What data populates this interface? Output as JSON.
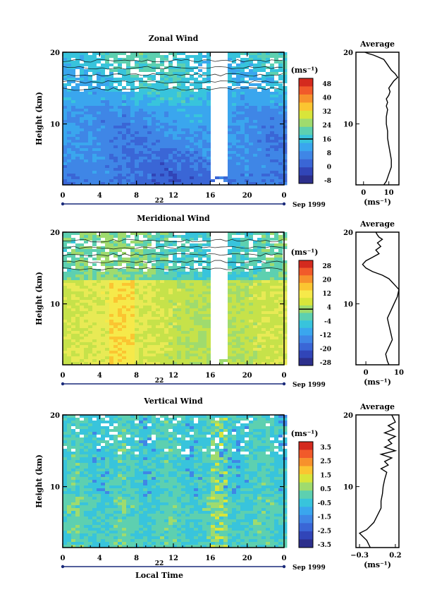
{
  "chart_data": [
    {
      "type": "heatmap",
      "title": "Zonal Wind",
      "ylabel": "Height (km)",
      "x_ticks": [
        "0",
        "4",
        "8",
        "12",
        "16",
        "20",
        "0"
      ],
      "y_ticks": [
        "10",
        "20"
      ],
      "xlim": [
        0,
        24
      ],
      "ylim": [
        1.5,
        20
      ],
      "date_day": "22",
      "date_month": "Sep 1999",
      "colorbar_units": "(ms⁻¹)",
      "colorbar_ticks": [
        "48",
        "40",
        "32",
        "24",
        "16",
        "8",
        "0",
        "-8"
      ],
      "colorbar_colors": [
        "#d42a1e",
        "#f15a2a",
        "#f7912c",
        "#fbc531",
        "#d8e53a",
        "#9fdb6e",
        "#5dd0b0",
        "#38c4dc",
        "#3aa6ee",
        "#3f86e6",
        "#3a66d6",
        "#3145b8",
        "#2c2f8c"
      ],
      "zero_line_index": 6,
      "average": {
        "title": "Average",
        "xlabel": "(ms⁻¹)",
        "x_ticks": [
          "0",
          "10"
        ],
        "y_ticks": [
          "10",
          "20"
        ],
        "xlim": [
          -3,
          14
        ],
        "profile_x": [
          8,
          9,
          10,
          11,
          11,
          10.5,
          10,
          9.5,
          9.5,
          9,
          9,
          9.5,
          9,
          9.5,
          9,
          10,
          10.5,
          10,
          11,
          12,
          13.5,
          12.5,
          11,
          10,
          9,
          8,
          6,
          4,
          2,
          0.5
        ],
        "profile_y": [
          1.5,
          2,
          3,
          4,
          5,
          6,
          7,
          8,
          9,
          10,
          11,
          12,
          12.5,
          13,
          13.5,
          14,
          14.5,
          15,
          15.5,
          16,
          16.5,
          17,
          17.5,
          18,
          18.5,
          19,
          19.3,
          19.6,
          19.8,
          20
        ]
      }
    },
    {
      "type": "heatmap",
      "title": "Meridional Wind",
      "ylabel": "Height (km)",
      "x_ticks": [
        "0",
        "4",
        "8",
        "12",
        "16",
        "20",
        "0"
      ],
      "y_ticks": [
        "10",
        "20"
      ],
      "xlim": [
        0,
        24
      ],
      "ylim": [
        1.5,
        20
      ],
      "date_day": "22",
      "date_month": "Sep 1999",
      "colorbar_units": "(ms⁻¹)",
      "colorbar_ticks": [
        "28",
        "20",
        "12",
        "4",
        "-4",
        "-12",
        "-20",
        "-28"
      ],
      "colorbar_colors": [
        "#d42a1e",
        "#f15a2a",
        "#f7912c",
        "#fbc531",
        "#f6e94a",
        "#d8e53a",
        "#9fdb6e",
        "#5dd0b0",
        "#38c4dc",
        "#3aa6ee",
        "#3f86e6",
        "#3a66d6",
        "#3145b8",
        "#2c2f8c"
      ],
      "zero_line_index": 5,
      "average": {
        "title": "Average",
        "xlabel": "(ms⁻¹)",
        "x_ticks": [
          "0",
          "10"
        ],
        "y_ticks": [
          "10",
          "20"
        ],
        "xlim": [
          -3,
          10
        ],
        "profile_x": [
          7,
          6.5,
          6,
          7,
          8,
          7.5,
          7,
          6.5,
          7.5,
          8.5,
          9.5,
          10,
          9,
          8,
          7,
          5,
          2,
          0,
          -1,
          0,
          2,
          4,
          3,
          4.5,
          3.5,
          5,
          4,
          3.5,
          3
        ],
        "profile_y": [
          1.5,
          2,
          3,
          4,
          5,
          6,
          7,
          8,
          9,
          10,
          11,
          12,
          12.5,
          13,
          13.5,
          14,
          14.5,
          15,
          15.5,
          16,
          16.5,
          17,
          17.5,
          18,
          18.5,
          19,
          19.3,
          19.6,
          20
        ]
      }
    },
    {
      "type": "heatmap",
      "title": "Vertical Wind",
      "ylabel": "Height (km)",
      "xlabel": "Local Time",
      "x_ticks": [
        "0",
        "4",
        "8",
        "12",
        "16",
        "20",
        "0"
      ],
      "y_ticks": [
        "10",
        "20"
      ],
      "xlim": [
        0,
        24
      ],
      "ylim": [
        1.5,
        20
      ],
      "date_day": "22",
      "date_month": "Sep 1999",
      "colorbar_units": "(ms⁻¹)",
      "colorbar_ticks": [
        "3.5",
        "2.5",
        "1.5",
        "0.5",
        "-0.5",
        "-1.5",
        "-2.5",
        "-3.5"
      ],
      "colorbar_colors": [
        "#d42a1e",
        "#f15a2a",
        "#f7912c",
        "#fbc531",
        "#d8e53a",
        "#9fdb6e",
        "#5dd0b0",
        "#38c4dc",
        "#3aa6ee",
        "#3f86e6",
        "#3a66d6",
        "#3145b8",
        "#2c2f8c"
      ],
      "zero_line_index": -1,
      "average": {
        "title": "Average",
        "xlabel": "(ms⁻¹)",
        "x_ticks": [
          "−0.3",
          "0.2"
        ],
        "y_ticks": [
          "10",
          "20"
        ],
        "xlim": [
          -0.35,
          0.25
        ],
        "profile_x": [
          -0.15,
          -0.2,
          -0.3,
          -0.2,
          -0.1,
          -0.05,
          0,
          0,
          0.02,
          0.03,
          0.05,
          0.08,
          0.0,
          0.1,
          0.05,
          0.15,
          0.0,
          0.2,
          0.05,
          0.15,
          0.1,
          0.2,
          0.05,
          0.18,
          0.1,
          0.2,
          0.15
        ],
        "profile_y": [
          1.5,
          2.5,
          3.5,
          4,
          5,
          6,
          7,
          8,
          9,
          10,
          11,
          12,
          12.5,
          13,
          13.5,
          14,
          14.5,
          15,
          15.5,
          16,
          16.5,
          17,
          17.5,
          18,
          18.5,
          19,
          20
        ]
      }
    }
  ]
}
